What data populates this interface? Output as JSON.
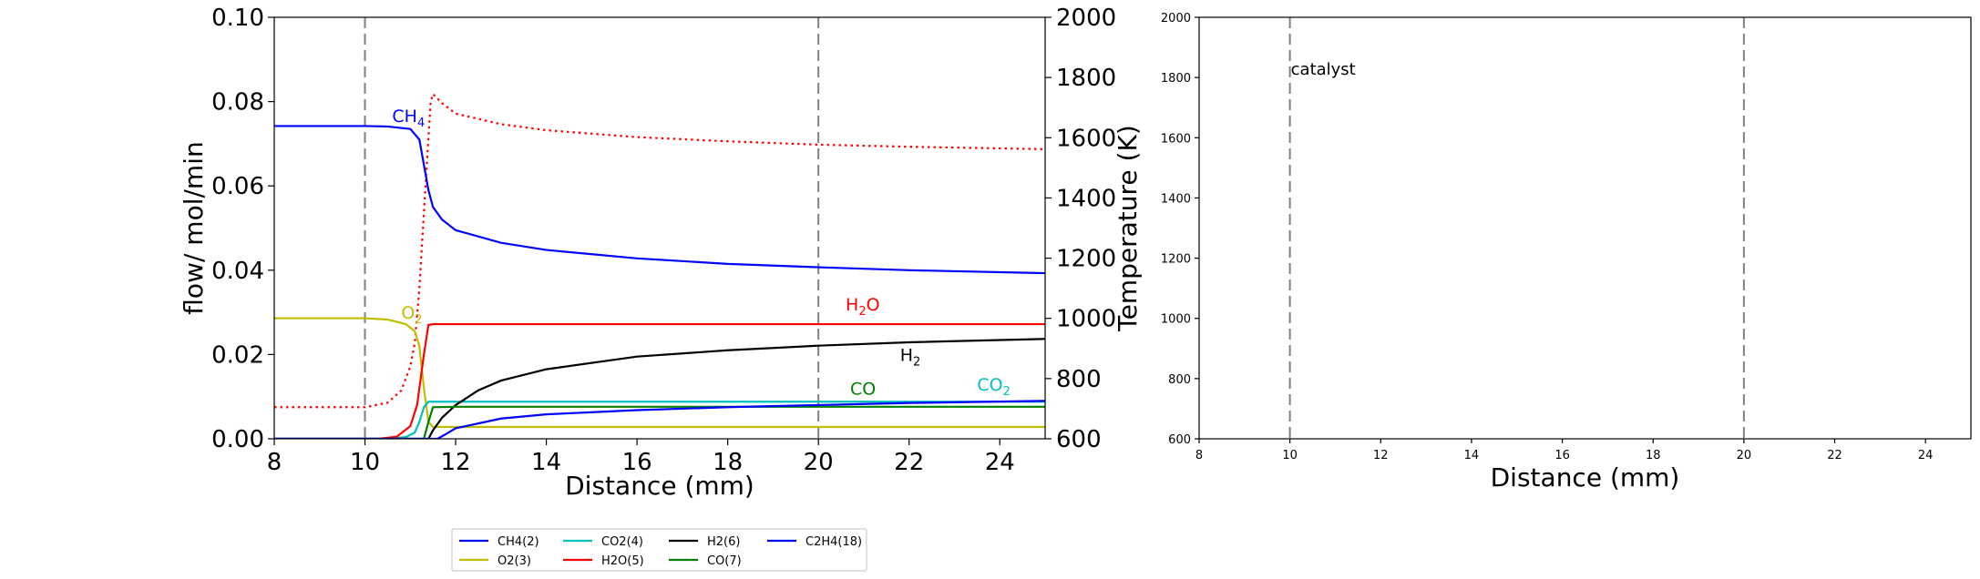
{
  "chart_data": [
    {
      "type": "line",
      "title": "",
      "xlabel": "Distance (mm)",
      "ylabel": "flow/ mol/min",
      "y2label": "Temperature (K)",
      "xlim": [
        8,
        25
      ],
      "ylim": [
        0,
        0.1
      ],
      "y2lim": [
        600,
        2000
      ],
      "xticks": [
        8,
        10,
        12,
        14,
        16,
        18,
        20,
        22,
        24
      ],
      "yticks": [
        0.0,
        0.02,
        0.04,
        0.06,
        0.08,
        0.1
      ],
      "yticklabels": [
        "0.00",
        "0.02",
        "0.04",
        "0.06",
        "0.08",
        "0.10"
      ],
      "y2ticks": [
        600,
        800,
        1000,
        1200,
        1400,
        1600,
        1800,
        2000
      ],
      "vlines": [
        10,
        20
      ],
      "grid": false,
      "series": [
        {
          "name": "CH4(2)",
          "color": "#0000ff",
          "style": "solid",
          "x": [
            8,
            10,
            10.5,
            11,
            11.2,
            11.3,
            11.4,
            11.5,
            11.7,
            12,
            13,
            14,
            16,
            18,
            20,
            22,
            25
          ],
          "y": [
            0.0742,
            0.0742,
            0.0741,
            0.0735,
            0.071,
            0.065,
            0.059,
            0.055,
            0.052,
            0.0495,
            0.0465,
            0.0448,
            0.0428,
            0.0415,
            0.0407,
            0.04,
            0.0393
          ]
        },
        {
          "name": "O2(3)",
          "color": "#bfbf00",
          "style": "solid",
          "x": [
            8,
            10,
            10.5,
            10.9,
            11.1,
            11.2,
            11.3,
            11.4,
            11.5,
            12,
            25
          ],
          "y": [
            0.0286,
            0.0286,
            0.0283,
            0.0272,
            0.0255,
            0.022,
            0.012,
            0.004,
            0.0028,
            0.0028,
            0.0028
          ]
        },
        {
          "name": "CO2(4)",
          "color": "#00bfbf",
          "style": "solid",
          "x": [
            8,
            10.5,
            10.9,
            11.1,
            11.2,
            11.3,
            11.4,
            11.5,
            12,
            25
          ],
          "y": [
            0,
            0,
            0.0004,
            0.0015,
            0.004,
            0.0075,
            0.0088,
            0.0088,
            0.0088,
            0.0088
          ]
        },
        {
          "name": "H2O(5)",
          "color": "#ff0000",
          "style": "solid",
          "x": [
            8,
            10.3,
            10.7,
            11,
            11.15,
            11.3,
            11.4,
            11.5,
            11.6,
            12,
            25
          ],
          "y": [
            0,
            0,
            0.0005,
            0.003,
            0.008,
            0.02,
            0.027,
            0.0272,
            0.0272,
            0.0272,
            0.0272
          ]
        },
        {
          "name": "H2(6)",
          "color": "#000000",
          "style": "solid",
          "x": [
            8,
            11.4,
            11.5,
            11.7,
            12,
            12.5,
            13,
            14,
            16,
            18,
            20,
            22,
            25
          ],
          "y": [
            0,
            0,
            0.002,
            0.005,
            0.008,
            0.0115,
            0.0138,
            0.0165,
            0.0195,
            0.021,
            0.0221,
            0.0229,
            0.0237
          ]
        },
        {
          "name": "CO(7)",
          "color": "#007f00",
          "style": "solid",
          "x": [
            8,
            11.3,
            11.4,
            11.5,
            12,
            25
          ],
          "y": [
            0,
            0,
            0.004,
            0.0075,
            0.0076,
            0.0076
          ]
        },
        {
          "name": "C2H4(18)",
          "color": "#0000ff",
          "style": "solid",
          "x": [
            8,
            11.6,
            11.8,
            12,
            13,
            14,
            16,
            18,
            20,
            22,
            25
          ],
          "y": [
            0,
            0,
            0.0012,
            0.0025,
            0.0048,
            0.0058,
            0.0068,
            0.0075,
            0.008,
            0.0085,
            0.009
          ]
        }
      ],
      "temperature": {
        "color": "#ff0000",
        "style": "dotted",
        "x": [
          8,
          10,
          10.5,
          10.8,
          11,
          11.1,
          11.2,
          11.3,
          11.4,
          11.45,
          11.5,
          11.7,
          12,
          13,
          14,
          16,
          18,
          20,
          22,
          25
        ],
        "y": [
          705,
          705,
          720,
          760,
          840,
          920,
          1100,
          1350,
          1600,
          1720,
          1745,
          1715,
          1680,
          1645,
          1625,
          1602,
          1588,
          1577,
          1570,
          1562
        ]
      },
      "annotations": [
        {
          "text": "CH",
          "sub": "4",
          "x": 10.6,
          "y": 0.0752,
          "color": "#0000ff"
        },
        {
          "text": "O",
          "sub": "2",
          "x": 10.8,
          "y": 0.0285,
          "color": "#bfbf00"
        },
        {
          "text": "H",
          "sub": "2",
          "after": "O",
          "x": 20.6,
          "y": 0.0305,
          "color": "#ff0000"
        },
        {
          "text": "H",
          "sub": "2",
          "x": 21.8,
          "y": 0.0185,
          "color": "#000000"
        },
        {
          "text": "CO",
          "x": 20.7,
          "y": 0.0105,
          "color": "#007f00"
        },
        {
          "text": "CO",
          "sub": "2",
          "x": 23.5,
          "y": 0.0115,
          "color": "#00bfbf"
        }
      ],
      "legend": {
        "placement": "below",
        "columns": 4,
        "entries": [
          {
            "label": "CH4(2)",
            "color": "#0000ff"
          },
          {
            "label": "O2(3)",
            "color": "#bfbf00"
          },
          {
            "label": "CO2(4)",
            "color": "#00bfbf"
          },
          {
            "label": "H2O(5)",
            "color": "#ff0000"
          },
          {
            "label": "H2(6)",
            "color": "#000000"
          },
          {
            "label": "CO(7)",
            "color": "#007f00"
          },
          {
            "label": "C2H4(18)",
            "color": "#0000ff"
          }
        ]
      }
    },
    {
      "type": "line",
      "title": "",
      "xlabel": "Distance (mm)",
      "ylabel": "",
      "xlim": [
        8,
        25
      ],
      "ylim": [
        600,
        2000
      ],
      "xticks": [
        8,
        10,
        12,
        14,
        16,
        18,
        20,
        22,
        24
      ],
      "yticks": [
        600,
        800,
        1000,
        1200,
        1400,
        1600,
        1800,
        2000
      ],
      "vlines": [
        10,
        20
      ],
      "grid": false,
      "series": [],
      "annotations": [
        {
          "text": "catalyst",
          "x": 10,
          "y": 1810
        }
      ]
    }
  ]
}
